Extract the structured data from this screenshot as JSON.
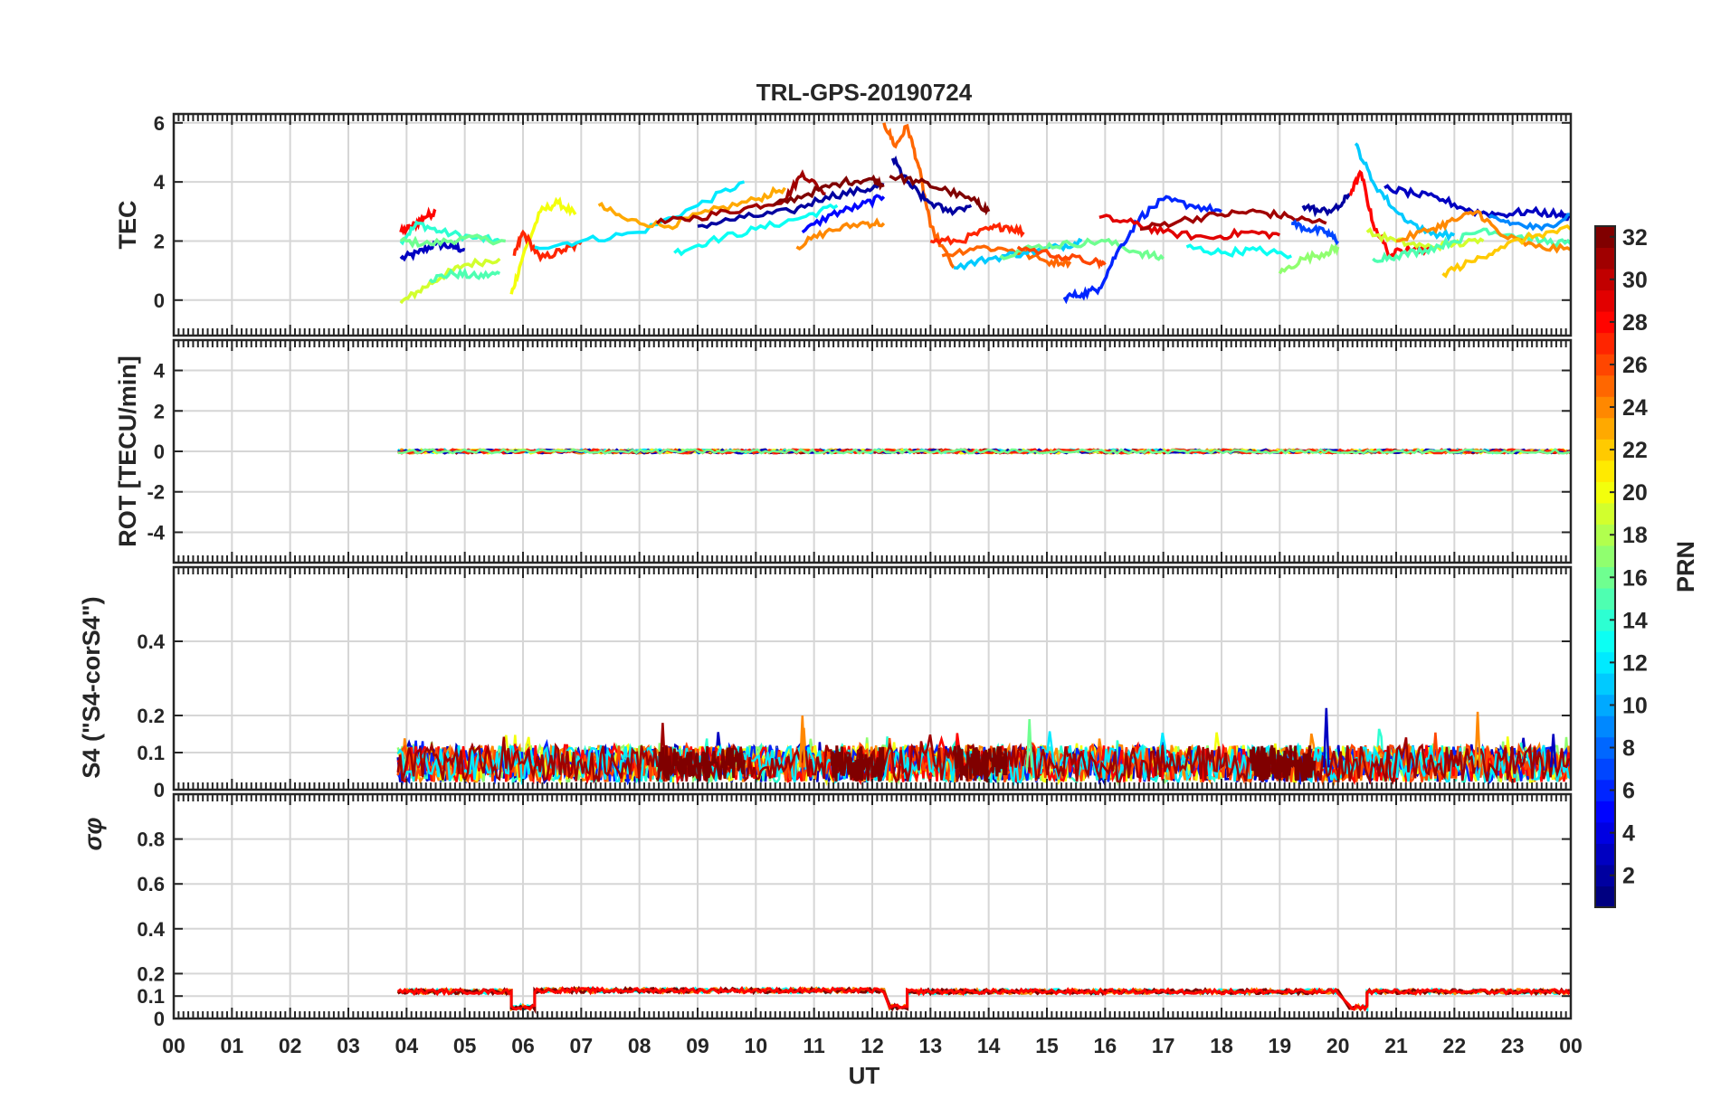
{
  "chart_data": {
    "type": "line",
    "title": "TRL-GPS-20190724",
    "xlabel": "UT",
    "x_ticks": [
      "00",
      "01",
      "02",
      "03",
      "04",
      "05",
      "06",
      "07",
      "08",
      "09",
      "10",
      "11",
      "12",
      "13",
      "14",
      "15",
      "16",
      "17",
      "18",
      "19",
      "20",
      "21",
      "22",
      "23",
      "00"
    ],
    "xlim": [
      0,
      24
    ],
    "grid": true,
    "panels": [
      {
        "id": "tec",
        "ylabel": "TEC",
        "ylim": [
          -1.2,
          6.3
        ],
        "yticks": [
          0,
          2,
          4,
          6
        ],
        "ytick_labels": [
          "0",
          "2",
          "4",
          "6"
        ],
        "series": [
          {
            "prn": 3,
            "x": [
              3.9,
              4.2,
              4.5,
              4.8,
              5.0
            ],
            "y": [
              1.4,
              1.6,
              1.9,
              1.8,
              1.7
            ]
          },
          {
            "prn": 28,
            "x": [
              3.9,
              4.1,
              4.3,
              4.5
            ],
            "y": [
              2.3,
              2.5,
              2.8,
              3.0
            ]
          },
          {
            "prn": 14,
            "x": [
              3.9,
              4.2,
              4.6,
              5.2,
              5.6
            ],
            "y": [
              2.0,
              2.6,
              2.3,
              2.1,
              2.0
            ]
          },
          {
            "prn": 16,
            "x": [
              3.9,
              4.4,
              5.0,
              5.7
            ],
            "y": [
              2.0,
              1.9,
              2.1,
              2.0
            ]
          },
          {
            "prn": 19,
            "x": [
              3.9,
              4.2,
              4.6,
              5.0,
              5.6
            ],
            "y": [
              -0.1,
              0.3,
              0.8,
              1.2,
              1.4
            ]
          },
          {
            "prn": 15,
            "x": [
              4.4,
              4.8,
              5.2,
              5.6
            ],
            "y": [
              0.7,
              0.9,
              0.8,
              0.9
            ]
          },
          {
            "prn": 20,
            "x": [
              5.8,
              6.0,
              6.3,
              6.6,
              6.9
            ],
            "y": [
              0.2,
              1.5,
              3.0,
              3.3,
              2.9
            ]
          },
          {
            "prn": 27,
            "x": [
              5.85,
              6.0,
              6.3,
              6.7,
              7.0
            ],
            "y": [
              1.5,
              2.3,
              1.4,
              1.7,
              1.9
            ]
          },
          {
            "prn": 12,
            "x": [
              6.2,
              7.0,
              8.0,
              9.0,
              9.8
            ],
            "y": [
              1.8,
              2.0,
              2.3,
              3.2,
              4.0
            ]
          },
          {
            "prn": 23,
            "x": [
              7.3,
              7.8,
              8.5,
              9.2,
              10.0,
              10.5
            ],
            "y": [
              3.2,
              2.7,
              2.5,
              3.0,
              3.4,
              3.8
            ]
          },
          {
            "prn": 31,
            "x": [
              8.3,
              9.0,
              9.8,
              10.5,
              10.8,
              11.2
            ],
            "y": [
              2.6,
              2.8,
              3.1,
              3.4,
              4.3,
              3.6
            ]
          },
          {
            "prn": 13,
            "x": [
              8.6,
              9.2,
              10.0,
              10.8,
              11.4
            ],
            "y": [
              1.6,
              2.0,
              2.4,
              2.8,
              3.2
            ]
          },
          {
            "prn": 2,
            "x": [
              9.0,
              9.8,
              10.6,
              11.2,
              11.8,
              12.2
            ],
            "y": [
              2.5,
              2.8,
              3.0,
              3.5,
              3.7,
              3.9
            ]
          },
          {
            "prn": 32,
            "x": [
              10.3,
              10.9,
              11.5,
              12.0,
              12.2
            ],
            "y": [
              3.2,
              3.6,
              4.0,
              4.1,
              3.9
            ]
          },
          {
            "prn": 24,
            "x": [
              10.7,
              11.2,
              11.8,
              12.2
            ],
            "y": [
              1.8,
              2.3,
              2.6,
              2.6
            ]
          },
          {
            "prn": 5,
            "x": [
              10.8,
              11.3,
              11.8,
              12.2
            ],
            "y": [
              2.3,
              2.9,
              3.2,
              3.5
            ]
          },
          {
            "prn": 25,
            "x": [
              12.2,
              12.4,
              12.6,
              12.8,
              13.0,
              13.4
            ],
            "y": [
              6.0,
              5.2,
              5.9,
              4.5,
              2.5,
              1.1
            ]
          },
          {
            "prn": 2,
            "x": [
              12.35,
              12.6,
              12.9,
              13.3,
              13.7
            ],
            "y": [
              4.8,
              4.0,
              3.4,
              3.0,
              3.2
            ]
          },
          {
            "prn": 32,
            "x": [
              12.3,
              12.8,
              13.3,
              13.8,
              14.0
            ],
            "y": [
              4.2,
              4.0,
              3.7,
              3.3,
              3.0
            ]
          },
          {
            "prn": 27,
            "x": [
              13.0,
              13.5,
              14.0,
              14.3,
              14.6
            ],
            "y": [
              2.0,
              2.0,
              2.4,
              2.5,
              2.3
            ]
          },
          {
            "prn": 25,
            "x": [
              13.2,
              13.8,
              14.4,
              15.0,
              15.4
            ],
            "y": [
              1.5,
              1.8,
              1.7,
              1.3,
              1.3
            ]
          },
          {
            "prn": 11,
            "x": [
              13.4,
              14.0,
              14.6,
              15.2,
              15.6
            ],
            "y": [
              1.1,
              1.4,
              1.6,
              1.8,
              2.0
            ]
          },
          {
            "prn": 16,
            "x": [
              14.2,
              14.8,
              15.4,
              16.0,
              16.6,
              17.0
            ],
            "y": [
              1.5,
              1.8,
              1.9,
              2.0,
              1.6,
              1.4
            ]
          },
          {
            "prn": 26,
            "x": [
              14.5,
              15.2,
              15.8,
              16.0
            ],
            "y": [
              1.8,
              1.5,
              1.3,
              1.2
            ]
          },
          {
            "prn": 6,
            "x": [
              15.3,
              15.6,
              15.9,
              16.2,
              16.6,
              17.0,
              17.5,
              18.0
            ],
            "y": [
              0.1,
              0.2,
              0.4,
              1.6,
              2.8,
              3.4,
              3.2,
              3.0
            ]
          },
          {
            "prn": 29,
            "x": [
              15.9,
              16.5,
              17.0,
              17.8,
              18.4,
              19.0
            ],
            "y": [
              2.8,
              2.6,
              2.3,
              2.1,
              2.3,
              2.2
            ]
          },
          {
            "prn": 31,
            "x": [
              16.6,
              17.3,
              18.0,
              18.6,
              19.2,
              19.8
            ],
            "y": [
              2.4,
              2.7,
              2.9,
              3.0,
              2.8,
              2.6
            ]
          },
          {
            "prn": 13,
            "x": [
              17.4,
              18.0,
              18.6,
              19.2
            ],
            "y": [
              1.8,
              1.6,
              1.7,
              1.5
            ]
          },
          {
            "prn": 17,
            "x": [
              19.0,
              19.4,
              19.8,
              20.0
            ],
            "y": [
              0.9,
              1.4,
              1.6,
              1.8
            ]
          },
          {
            "prn": 7,
            "x": [
              19.2,
              19.5,
              19.8,
              20.0
            ],
            "y": [
              2.6,
              2.4,
              2.3,
              2.0
            ]
          },
          {
            "prn": 2,
            "x": [
              19.4,
              19.7,
              20.0,
              20.2
            ],
            "y": [
              3.2,
              3.0,
              3.1,
              3.6
            ]
          },
          {
            "prn": 28,
            "x": [
              20.2,
              20.4,
              20.6,
              20.9,
              21.2,
              21.6
            ],
            "y": [
              3.6,
              4.3,
              2.6,
              1.5,
              1.8,
              1.7
            ]
          },
          {
            "prn": 11,
            "x": [
              20.3,
              20.6,
              21.0,
              21.5,
              22.0
            ],
            "y": [
              5.3,
              4.0,
              3.0,
              2.3,
              2.2
            ]
          },
          {
            "prn": 19,
            "x": [
              20.5,
              21.0,
              21.5,
              22.0,
              22.5
            ],
            "y": [
              2.3,
              2.0,
              1.8,
              1.9,
              2.0
            ]
          },
          {
            "prn": 15,
            "x": [
              20.6,
              21.0,
              21.5,
              22.0,
              22.5,
              23.0,
              23.5,
              24.0
            ],
            "y": [
              1.4,
              1.5,
              1.7,
              2.0,
              2.4,
              2.2,
              2.0,
              1.9
            ]
          },
          {
            "prn": 3,
            "x": [
              20.8,
              21.3,
              21.8,
              22.3,
              22.8,
              23.3,
              23.8,
              24.0
            ],
            "y": [
              3.8,
              3.6,
              3.4,
              3.0,
              2.9,
              3.0,
              2.9,
              2.8
            ]
          },
          {
            "prn": 24,
            "x": [
              21.0,
              21.6,
              22.0,
              22.4,
              22.8,
              23.4,
              24.0
            ],
            "y": [
              2.0,
              2.4,
              2.7,
              3.0,
              2.2,
              1.8,
              1.7
            ]
          },
          {
            "prn": 22,
            "x": [
              21.8,
              22.3,
              22.8,
              23.4,
              24.0
            ],
            "y": [
              0.9,
              1.3,
              1.8,
              2.2,
              2.4
            ]
          },
          {
            "prn": 9,
            "x": [
              22.6,
              23.0,
              23.5,
              24.0
            ],
            "y": [
              2.8,
              2.6,
              2.4,
              2.9
            ]
          }
        ]
      },
      {
        "id": "rot",
        "ylabel": "ROT [TECU/min]",
        "ylim": [
          -5.5,
          5.5
        ],
        "yticks": [
          -4,
          -2,
          0,
          2,
          4
        ],
        "ytick_labels": [
          "-4",
          "-2",
          "0",
          "2",
          "4"
        ],
        "coverage_x": [
          3.85,
          24.0
        ],
        "noise_amplitude": 0.1,
        "baseline": 0
      },
      {
        "id": "s4",
        "ylabel": "S4 (\"S4-corS4\")",
        "ylim": [
          0,
          0.6
        ],
        "yticks": [
          0,
          0.1,
          0.2,
          0.4
        ],
        "ytick_labels": [
          "0",
          "0.1",
          "0.2",
          "0.4"
        ],
        "coverage_x": [
          3.85,
          24.0
        ],
        "typical_range": [
          0.02,
          0.12
        ],
        "peaks": [
          {
            "x": 10.8,
            "y": 0.2
          },
          {
            "x": 19.8,
            "y": 0.22
          },
          {
            "x": 22.4,
            "y": 0.21
          },
          {
            "x": 14.7,
            "y": 0.19
          },
          {
            "x": 8.4,
            "y": 0.18
          },
          {
            "x": 23.7,
            "y": 0.15
          }
        ]
      },
      {
        "id": "sigma",
        "ylabel": "σφ",
        "ylim": [
          0,
          1
        ],
        "yticks": [
          0,
          0.1,
          0.2,
          0.4,
          0.6,
          0.8
        ],
        "ytick_labels": [
          "0",
          "0.1",
          "0.2",
          "0.4",
          "0.6",
          "0.8"
        ],
        "segments": [
          {
            "x": [
              3.85,
              5.8
            ],
            "y": 0.12
          },
          {
            "x": [
              5.8,
              6.2
            ],
            "y": 0.05
          },
          {
            "x": [
              6.2,
              12.2
            ],
            "y": 0.125
          },
          {
            "x": [
              12.3,
              12.6
            ],
            "y": 0.05
          },
          {
            "x": [
              12.6,
              20.0
            ],
            "y": 0.12
          },
          {
            "x": [
              20.2,
              20.5
            ],
            "y": 0.05
          },
          {
            "x": [
              20.5,
              24.0
            ],
            "y": 0.12
          }
        ]
      }
    ],
    "colorbar": {
      "label": "PRN",
      "range": [
        1,
        32
      ],
      "ticks": [
        2,
        4,
        6,
        8,
        10,
        12,
        14,
        16,
        18,
        20,
        22,
        24,
        26,
        28,
        30,
        32
      ],
      "tick_labels": [
        "2",
        "4",
        "6",
        "8",
        "10",
        "12",
        "14",
        "16",
        "18",
        "20",
        "22",
        "24",
        "26",
        "28",
        "30",
        "32"
      ],
      "colormap": "jet"
    }
  }
}
